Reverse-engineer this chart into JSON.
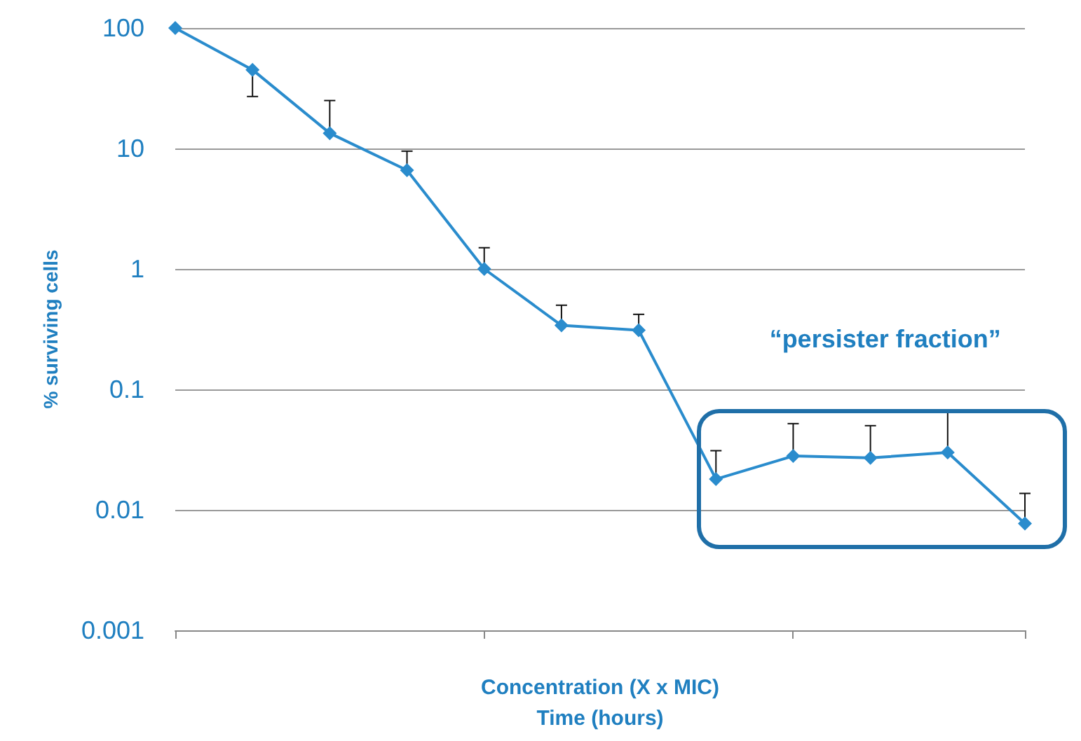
{
  "chart_data": {
    "type": "line",
    "xlabel": "Concentration (X x MIC)\nTime (hours)",
    "ylabel": "% surviving cells",
    "annotations": [
      "“persister fraction”"
    ],
    "categories": [
      null,
      null,
      null,
      null,
      null,
      null,
      null,
      null,
      null,
      null,
      null,
      null
    ],
    "series": [
      {
        "color": "#2a8ccd",
        "values": [
          100,
          45,
          13.4,
          6.6,
          1,
          0.34,
          0.31,
          0.018,
          0.028,
          0.027,
          0.03,
          0.0077
        ],
        "errors": [
          null,
          [
            45,
            27
          ],
          [
            13.4,
            25
          ],
          [
            6.6,
            9.5
          ],
          [
            1,
            1.5
          ],
          [
            0.34,
            0.5
          ],
          [
            0.31,
            0.42
          ],
          [
            0.018,
            0.031
          ],
          [
            0.028,
            0.052
          ],
          [
            0.027,
            0.05
          ],
          [
            0.03,
            0.065
          ],
          [
            0.0077,
            0.0137
          ]
        ]
      }
    ],
    "ylim": [
      0.001,
      100
    ],
    "yticks": [
      0.001,
      0.01,
      0.1,
      1,
      10,
      100
    ],
    "log": "y",
    "grid": "y",
    "marker": "diamond",
    "line_style": "solid"
  }
}
